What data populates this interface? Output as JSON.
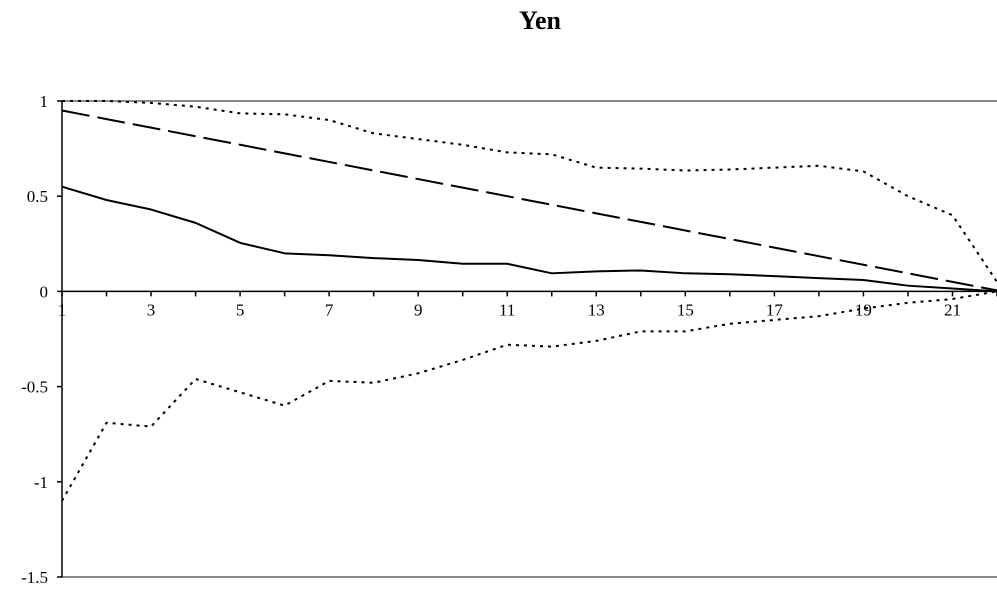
{
  "chart_data": {
    "type": "line",
    "title": "Yen",
    "xlabel": "",
    "ylabel": "",
    "x": [
      1,
      2,
      3,
      4,
      5,
      6,
      7,
      8,
      9,
      10,
      11,
      12,
      13,
      14,
      15,
      16,
      17,
      18,
      19,
      20,
      21,
      22
    ],
    "x_tick_labels": [
      "1",
      "3",
      "5",
      "7",
      "9",
      "11",
      "13",
      "15",
      "17",
      "19",
      "21"
    ],
    "y_tick_labels": [
      "1",
      "0.5",
      "0",
      "-0.5",
      "-1",
      "-1.5"
    ],
    "ylim": [
      -1.5,
      1
    ],
    "xlim": [
      1,
      22
    ],
    "grid": false,
    "series": [
      {
        "values": [
          0.55,
          0.48,
          0.43,
          0.36,
          0.255,
          0.2,
          0.19,
          0.175,
          0.165,
          0.145,
          0.145,
          0.095,
          0.105,
          0.11,
          0.095,
          0.09,
          0.08,
          0.07,
          0.06,
          0.03,
          0.015,
          0.0
        ],
        "style": "solid",
        "color": "#000000"
      },
      {
        "values": [
          0.95,
          0.905,
          0.86,
          0.815,
          0.77,
          0.725,
          0.68,
          0.635,
          0.59,
          0.545,
          0.5,
          0.455,
          0.41,
          0.365,
          0.32,
          0.275,
          0.23,
          0.185,
          0.14,
          0.095,
          0.05,
          0.005
        ],
        "style": "long-dash",
        "color": "#000000"
      },
      {
        "values": [
          1.0,
          1.0,
          0.99,
          0.97,
          0.935,
          0.93,
          0.9,
          0.83,
          0.8,
          0.77,
          0.73,
          0.72,
          0.65,
          0.645,
          0.635,
          0.64,
          0.65,
          0.66,
          0.63,
          0.5,
          0.4,
          0.05
        ],
        "style": "dotted",
        "color": "#000000"
      },
      {
        "values": [
          -1.1,
          -0.69,
          -0.71,
          -0.46,
          -0.53,
          -0.6,
          -0.47,
          -0.48,
          -0.43,
          -0.36,
          -0.28,
          -0.29,
          -0.26,
          -0.21,
          -0.21,
          -0.17,
          -0.15,
          -0.13,
          -0.09,
          -0.06,
          -0.04,
          0.0
        ],
        "style": "dotted",
        "color": "#000000"
      }
    ]
  }
}
